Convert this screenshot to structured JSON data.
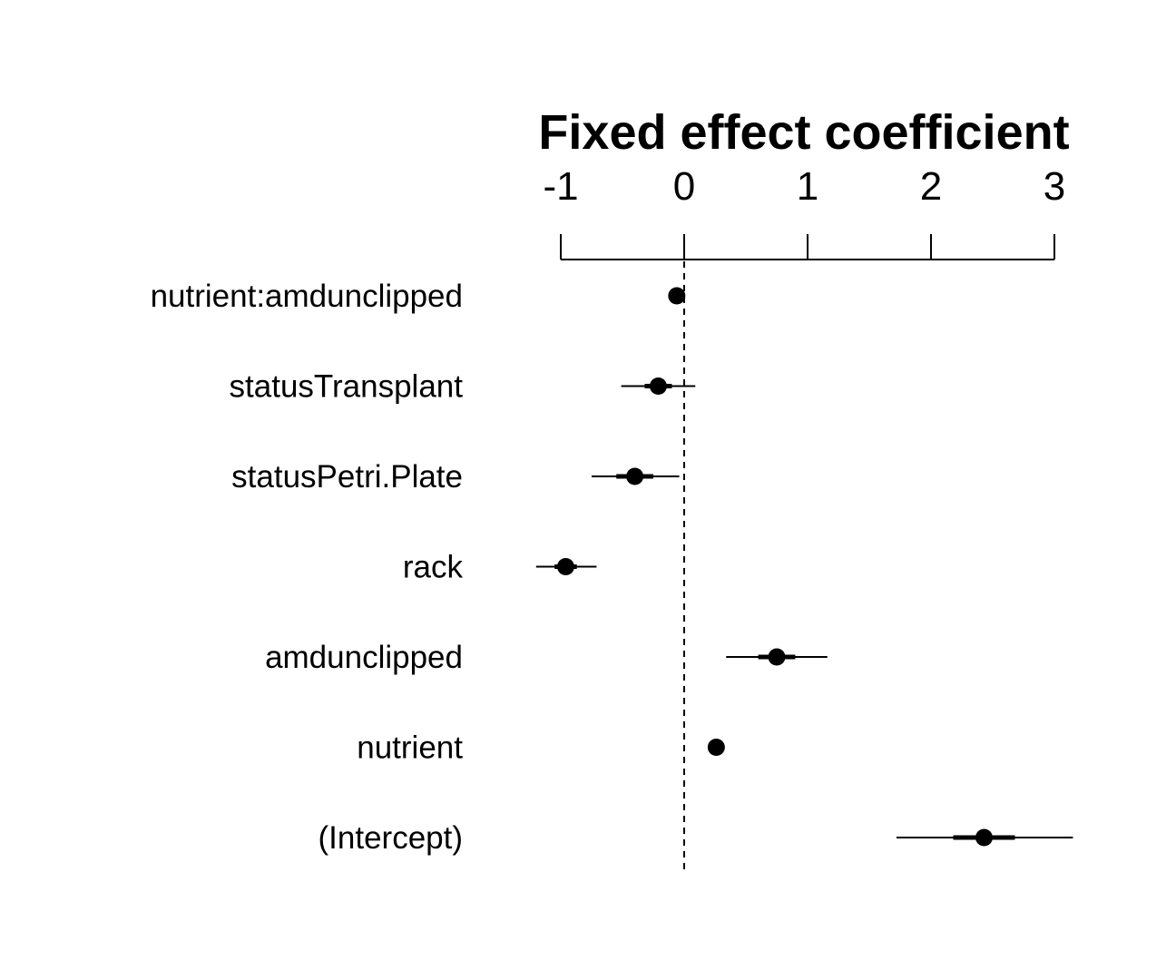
{
  "chart_data": {
    "type": "scatter",
    "title": "Fixed effect coefficient",
    "xlabel": "",
    "ylabel": "",
    "xlim": [
      -1,
      3
    ],
    "x_ticks": [
      "-1",
      "0",
      "1",
      "2",
      "3"
    ],
    "x_tick_values": [
      -1,
      0,
      1,
      2,
      3
    ],
    "reference_line": 0,
    "grid": false,
    "colors": {
      "points": "#000000",
      "lines": "#000000"
    },
    "series": [
      {
        "values": [
          {
            "term": "nutrient:amdunclipped",
            "estimate": -0.06,
            "inner_ci": [
              -0.1,
              -0.02
            ],
            "outer_ci": [
              -0.12,
              0.0
            ]
          },
          {
            "term": "statusTransplant",
            "estimate": -0.21,
            "inner_ci": [
              -0.32,
              -0.1
            ],
            "outer_ci": [
              -0.51,
              0.09
            ]
          },
          {
            "term": "statusPetri.Plate",
            "estimate": -0.4,
            "inner_ci": [
              -0.55,
              -0.25
            ],
            "outer_ci": [
              -0.75,
              -0.04
            ]
          },
          {
            "term": "rack",
            "estimate": -0.96,
            "inner_ci": [
              -1.05,
              -0.87
            ],
            "outer_ci": [
              -1.2,
              -0.71
            ]
          },
          {
            "term": "amdunclipped",
            "estimate": 0.75,
            "inner_ci": [
              0.6,
              0.9
            ],
            "outer_ci": [
              0.34,
              1.16
            ]
          },
          {
            "term": "nutrient",
            "estimate": 0.26,
            "inner_ci": [
              0.24,
              0.28
            ],
            "outer_ci": [
              0.23,
              0.29
            ]
          },
          {
            "term": "(Intercept)",
            "estimate": 2.43,
            "inner_ci": [
              2.18,
              2.68
            ],
            "outer_ci": [
              1.72,
              3.15
            ]
          }
        ]
      }
    ]
  }
}
